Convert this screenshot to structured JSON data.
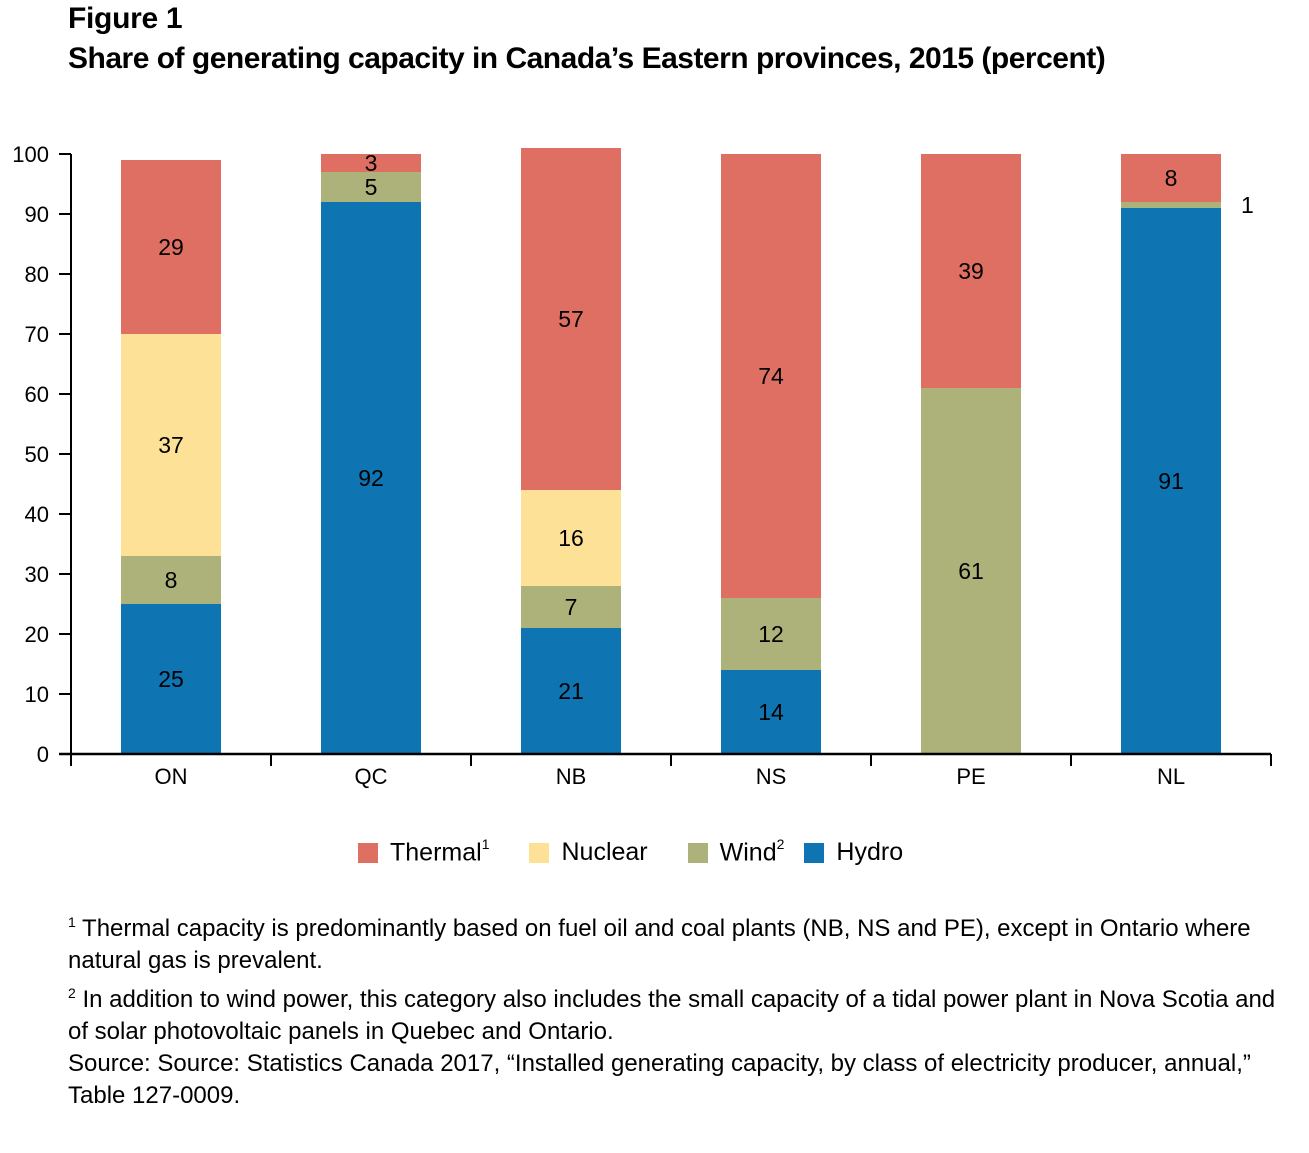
{
  "figure": {
    "label": "Figure 1",
    "title": "Share of generating capacity in Canada’s Eastern provinces, 2015 (percent)"
  },
  "legend": {
    "items": [
      {
        "name": "Thermal",
        "sup": "1",
        "color": "#df6f63"
      },
      {
        "name": "Nuclear",
        "sup": "",
        "color": "#fce196"
      },
      {
        "name": "Wind",
        "sup": "2",
        "color": "#acb27a"
      },
      {
        "name": "Hydro",
        "sup": "",
        "color": "#0e74b2"
      }
    ]
  },
  "notes": {
    "note1_sup": "1",
    "note1": " Thermal capacity is predominantly based on fuel oil and coal plants (NB, NS and PE), except in Ontario where natural gas is prevalent.",
    "note2_sup": "2",
    "note2": " In addition to wind power, this category also includes the small capacity of a tidal power plant in Nova Scotia and of solar photovoltaic panels in Quebec and Ontario.",
    "source": "Source: Source: Statistics Canada 2017, “Installed generating capacity, by class of electricity producer, annual,” Table 127-0009."
  },
  "chart_data": {
    "type": "bar",
    "stacked": true,
    "title": "Share of generating capacity in Canada’s Eastern provinces, 2015 (percent)",
    "xlabel": "",
    "ylabel": "",
    "ylim": [
      0,
      100
    ],
    "yticks": [
      0,
      10,
      20,
      30,
      40,
      50,
      60,
      70,
      80,
      90,
      100
    ],
    "grid": false,
    "legend_position": "bottom",
    "categories": [
      "ON",
      "QC",
      "NB",
      "NS",
      "PE",
      "NL"
    ],
    "series": [
      {
        "name": "Hydro",
        "color": "#0e74b2",
        "values": [
          25,
          92,
          21,
          14,
          0,
          91
        ]
      },
      {
        "name": "Wind",
        "color": "#acb27a",
        "values": [
          8,
          5,
          7,
          12,
          61,
          1
        ]
      },
      {
        "name": "Nuclear",
        "color": "#fce196",
        "values": [
          37,
          0,
          16,
          0,
          0,
          0
        ]
      },
      {
        "name": "Thermal",
        "color": "#df6f63",
        "values": [
          29,
          3,
          57,
          74,
          39,
          8
        ]
      }
    ],
    "annotations": [
      {
        "category": "NL",
        "series": "Wind",
        "text": "1",
        "placement": "outside-right"
      }
    ]
  }
}
